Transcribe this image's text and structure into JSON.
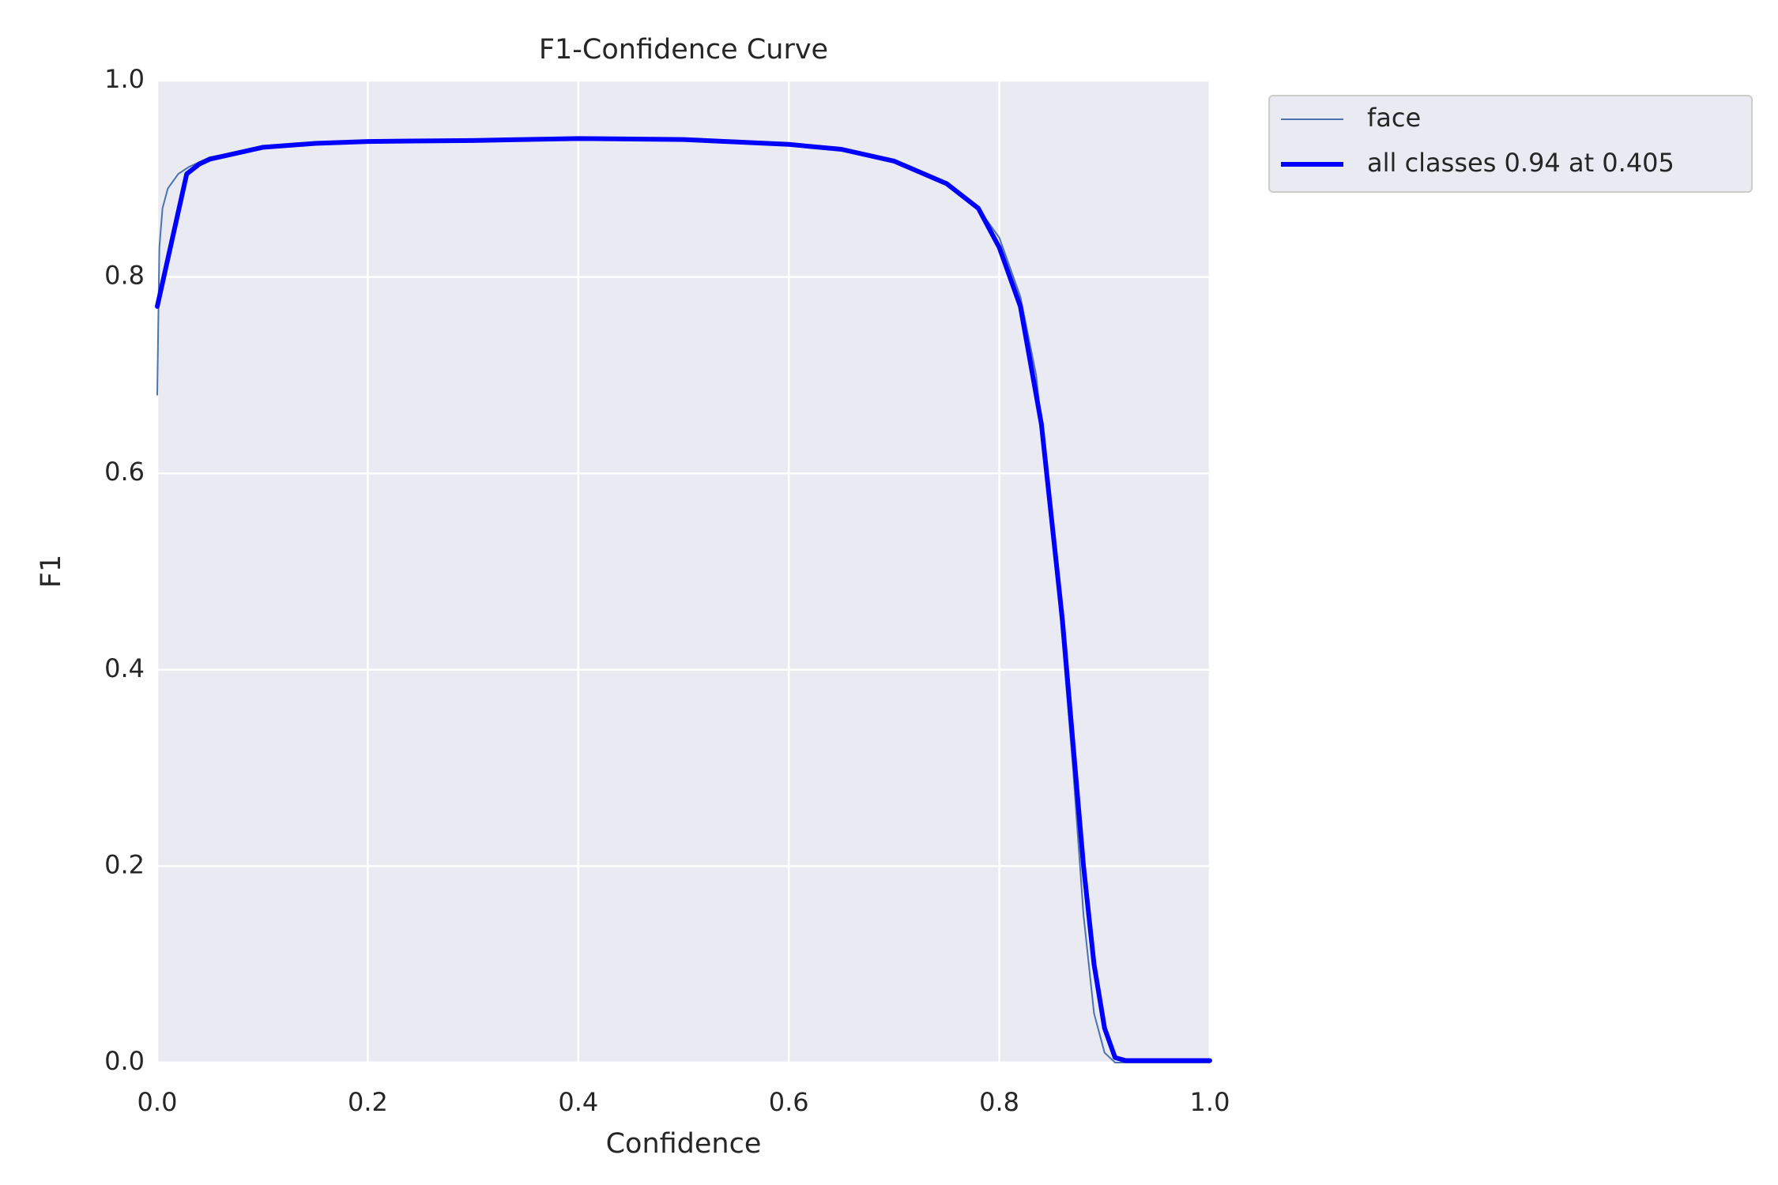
{
  "chart_data": {
    "type": "line",
    "title": "F1-Confidence Curve",
    "x_label": "Confidence",
    "y_label": "F1",
    "xlim": [
      0,
      1
    ],
    "ylim": [
      0,
      1
    ],
    "xticks": [
      {
        "value": 0,
        "label": "0.0"
      },
      0.2,
      0.4,
      0.6,
      0.8,
      {
        "value": 1,
        "label": "1.0"
      }
    ],
    "yticks": [
      {
        "value": 0,
        "label": "0.0"
      },
      0.2,
      0.4,
      0.6,
      0.8,
      {
        "value": 1,
        "label": "1.0"
      }
    ],
    "grid": true,
    "legend": "outside upper right",
    "series": [
      {
        "name": "face",
        "color": "#4c72b0",
        "linewidth": 2,
        "x": [
          0,
          0.002,
          0.005,
          0.01,
          0.02,
          0.03,
          0.05,
          0.1,
          0.15,
          0.2,
          0.3,
          0.4,
          0.5,
          0.6,
          0.65,
          0.7,
          0.75,
          0.78,
          0.8,
          0.82,
          0.835,
          0.85,
          0.86,
          0.87,
          0.88,
          0.89,
          0.9,
          0.91,
          1.0
        ],
        "values": [
          0.68,
          0.83,
          0.87,
          0.89,
          0.905,
          0.912,
          0.922,
          0.932,
          0.936,
          0.938,
          0.939,
          0.941,
          0.94,
          0.935,
          0.93,
          0.918,
          0.895,
          0.87,
          0.84,
          0.78,
          0.7,
          0.55,
          0.43,
          0.3,
          0.15,
          0.05,
          0.01,
          0,
          0
        ]
      },
      {
        "name": "all classes 0.94 at 0.405",
        "color": "#0000ff",
        "linewidth": 6,
        "x": [
          0,
          0.028,
          0.04,
          0.05,
          0.1,
          0.15,
          0.2,
          0.3,
          0.4,
          0.5,
          0.6,
          0.65,
          0.7,
          0.75,
          0.78,
          0.8,
          0.82,
          0.84,
          0.86,
          0.88,
          0.89,
          0.9,
          0.91,
          0.92,
          1.0
        ],
        "values": [
          0.77,
          0.905,
          0.915,
          0.92,
          0.932,
          0.936,
          0.938,
          0.939,
          0.941,
          0.94,
          0.935,
          0.93,
          0.918,
          0.895,
          0.87,
          0.83,
          0.77,
          0.65,
          0.45,
          0.2,
          0.1,
          0.035,
          0.005,
          0.002,
          0.002
        ]
      }
    ]
  }
}
